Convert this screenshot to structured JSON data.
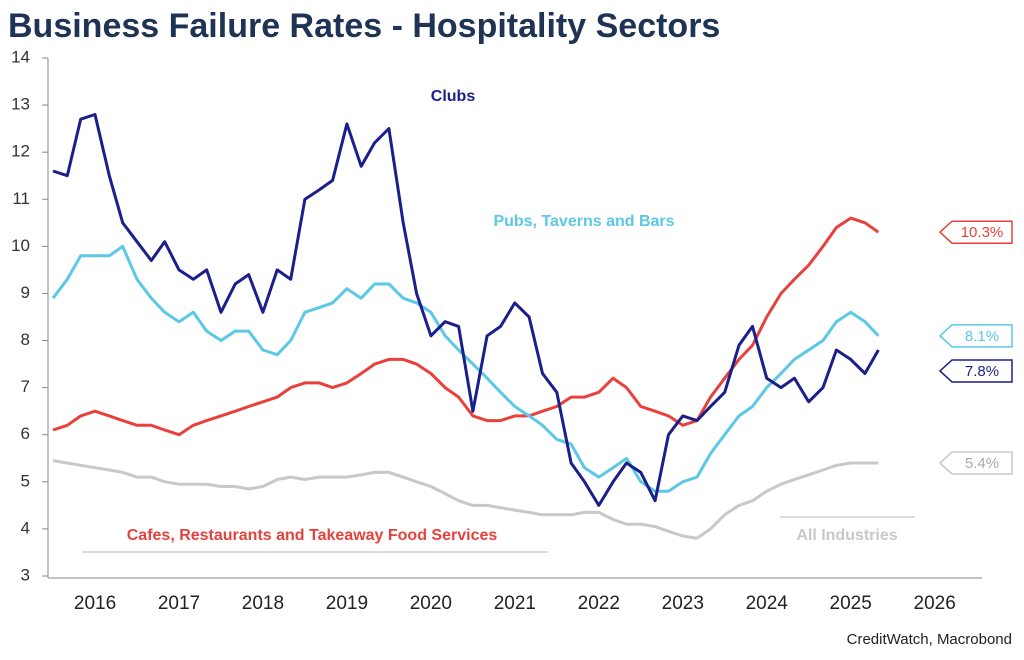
{
  "chart_data": {
    "type": "line",
    "title": "Business Failure Rates - Hospitality Sectors",
    "source": "CreditWatch, Macrobond",
    "x": [
      2016,
      2016.17,
      2016.33,
      2016.5,
      2016.67,
      2016.83,
      2017,
      2017.17,
      2017.33,
      2017.5,
      2017.67,
      2017.83,
      2018,
      2018.17,
      2018.33,
      2018.5,
      2018.67,
      2018.83,
      2019,
      2019.17,
      2019.33,
      2019.5,
      2019.67,
      2019.83,
      2020,
      2020.17,
      2020.33,
      2020.5,
      2020.67,
      2020.83,
      2021,
      2021.17,
      2021.33,
      2021.5,
      2021.67,
      2021.83,
      2022,
      2022.17,
      2022.33,
      2022.5,
      2022.67,
      2022.83,
      2023,
      2023.17,
      2023.33,
      2023.5,
      2023.67,
      2023.83,
      2024,
      2024.17,
      2024.33,
      2024.5,
      2024.67,
      2024.83,
      2025,
      2025.17,
      2025.33,
      2025.5,
      2025.67,
      2025.83
    ],
    "xlim": [
      2015.94,
      2027.04
    ],
    "xticks": [
      {
        "value": 2016.5,
        "label": "2016"
      },
      {
        "value": 2017.5,
        "label": "2017"
      },
      {
        "value": 2018.5,
        "label": "2018"
      },
      {
        "value": 2019.5,
        "label": "2019"
      },
      {
        "value": 2020.5,
        "label": "2020"
      },
      {
        "value": 2021.5,
        "label": "2021"
      },
      {
        "value": 2022.5,
        "label": "2022"
      },
      {
        "value": 2023.5,
        "label": "2023"
      },
      {
        "value": 2024.5,
        "label": "2024"
      },
      {
        "value": 2025.5,
        "label": "2025"
      },
      {
        "value": 2026.5,
        "label": "2026"
      }
    ],
    "ylim": [
      3,
      14
    ],
    "yticks": [
      3,
      4,
      5,
      6,
      7,
      8,
      9,
      10,
      11,
      12,
      13,
      14
    ],
    "grid": false,
    "series": [
      {
        "name": "Clubs",
        "color": "#1a1f8c",
        "end_label": "7.8%",
        "values": [
          11.6,
          11.5,
          12.7,
          12.8,
          11.5,
          10.5,
          10.1,
          9.7,
          10.1,
          9.5,
          9.3,
          9.5,
          8.6,
          9.2,
          9.4,
          8.6,
          9.5,
          9.3,
          11.0,
          11.2,
          11.4,
          12.6,
          11.7,
          12.2,
          12.5,
          10.5,
          9.0,
          8.1,
          8.4,
          8.3,
          6.5,
          8.1,
          8.3,
          8.8,
          8.5,
          7.3,
          6.9,
          5.4,
          5.0,
          4.5,
          5.0,
          5.4,
          5.2,
          4.6,
          6.0,
          6.4,
          6.3,
          6.6,
          6.9,
          7.9,
          8.3,
          7.2,
          7.0,
          7.2,
          6.7,
          7.0,
          7.8,
          7.6,
          7.3,
          7.8
        ]
      },
      {
        "name": "Pubs, Taverns and Bars",
        "color": "#5bc8e6",
        "end_label": "8.1%",
        "values": [
          8.9,
          9.3,
          9.8,
          9.8,
          9.8,
          10.0,
          9.3,
          8.9,
          8.6,
          8.4,
          8.6,
          8.2,
          8.0,
          8.2,
          8.2,
          7.8,
          7.7,
          8.0,
          8.6,
          8.7,
          8.8,
          9.1,
          8.9,
          9.2,
          9.2,
          8.9,
          8.8,
          8.6,
          8.1,
          7.8,
          7.5,
          7.2,
          6.9,
          6.6,
          6.4,
          6.2,
          5.9,
          5.8,
          5.3,
          5.1,
          5.3,
          5.5,
          5.0,
          4.8,
          4.8,
          5.0,
          5.1,
          5.6,
          6.0,
          6.4,
          6.6,
          7.0,
          7.3,
          7.6,
          7.8,
          8.0,
          8.4,
          8.6,
          8.4,
          8.1
        ]
      },
      {
        "name": "Cafes, Restaurants and Takeaway Food Services",
        "color": "#e8413c",
        "end_label": "10.3%",
        "values": [
          6.1,
          6.2,
          6.4,
          6.5,
          6.4,
          6.3,
          6.2,
          6.2,
          6.1,
          6.0,
          6.2,
          6.3,
          6.4,
          6.5,
          6.6,
          6.7,
          6.8,
          7.0,
          7.1,
          7.1,
          7.0,
          7.1,
          7.3,
          7.5,
          7.6,
          7.6,
          7.5,
          7.3,
          7.0,
          6.8,
          6.4,
          6.3,
          6.3,
          6.4,
          6.4,
          6.5,
          6.6,
          6.8,
          6.8,
          6.9,
          7.2,
          7.0,
          6.6,
          6.5,
          6.4,
          6.2,
          6.3,
          6.8,
          7.2,
          7.6,
          7.9,
          8.5,
          9.0,
          9.3,
          9.6,
          10.0,
          10.4,
          10.6,
          10.5,
          10.3
        ]
      },
      {
        "name": "All Industries",
        "color": "#c8c8c8",
        "end_label": "5.4%",
        "values": [
          5.45,
          5.4,
          5.35,
          5.3,
          5.25,
          5.2,
          5.1,
          5.1,
          5.0,
          4.95,
          4.95,
          4.95,
          4.9,
          4.9,
          4.85,
          4.9,
          5.05,
          5.1,
          5.05,
          5.1,
          5.1,
          5.1,
          5.15,
          5.2,
          5.2,
          5.1,
          5.0,
          4.9,
          4.75,
          4.6,
          4.5,
          4.5,
          4.45,
          4.4,
          4.35,
          4.3,
          4.3,
          4.3,
          4.35,
          4.35,
          4.2,
          4.1,
          4.1,
          4.05,
          3.95,
          3.85,
          3.8,
          4.0,
          4.3,
          4.5,
          4.6,
          4.8,
          4.95,
          5.05,
          5.15,
          5.25,
          5.35,
          5.4,
          5.4,
          5.4
        ]
      }
    ]
  }
}
